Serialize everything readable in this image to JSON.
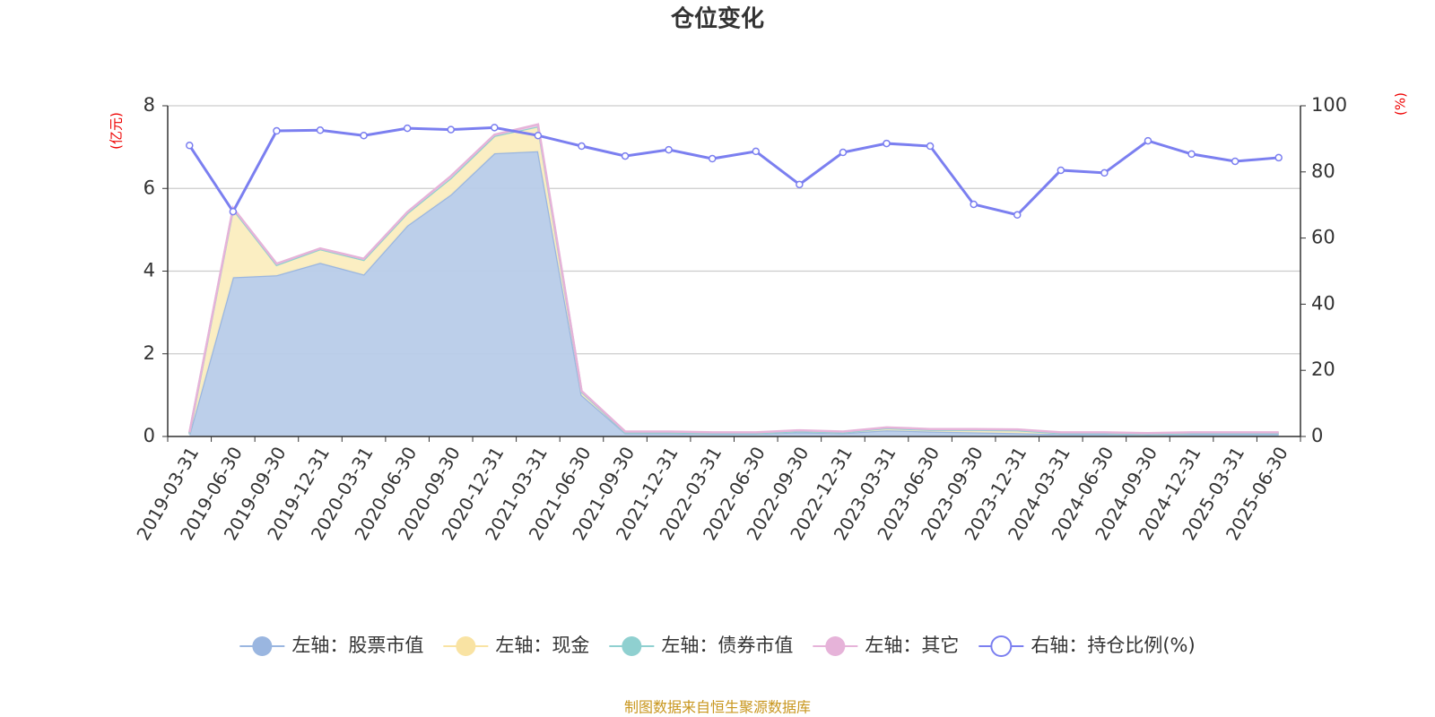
{
  "chart_data": {
    "type": "stacked-area-line",
    "title": "仓位变化",
    "y_label": "(亿元)",
    "y2_label": "(%)",
    "source": "制图数据来自恒生聚源数据库",
    "categories": [
      "2019-03-31",
      "2019-06-30",
      "2019-09-30",
      "2019-12-31",
      "2020-03-31",
      "2020-06-30",
      "2020-09-30",
      "2020-12-31",
      "2021-03-31",
      "2021-06-30",
      "2021-09-30",
      "2021-12-31",
      "2022-03-31",
      "2022-06-30",
      "2022-09-30",
      "2022-12-31",
      "2023-03-31",
      "2023-06-30",
      "2023-09-30",
      "2023-12-31",
      "2024-03-31",
      "2024-06-30",
      "2024-09-30",
      "2024-12-31",
      "2025-03-31",
      "2025-06-30"
    ],
    "ylim": [
      0,
      8
    ],
    "yticks": [
      0,
      2,
      4,
      6,
      8
    ],
    "y2lim": [
      0,
      100
    ],
    "y2ticks": [
      0,
      20,
      40,
      60,
      80,
      100
    ],
    "grid": true,
    "legend": "bottom",
    "series": [
      {
        "name": "左轴：股票市值",
        "color": "#9ab6e0",
        "fill": "#b8cce9",
        "kind": "area",
        "values": [
          0.05,
          3.85,
          3.9,
          4.2,
          3.92,
          5.1,
          5.85,
          6.85,
          6.9,
          1.0,
          0.08,
          0.08,
          0.07,
          0.07,
          0.1,
          0.08,
          0.15,
          0.12,
          0.1,
          0.08,
          0.06,
          0.06,
          0.05,
          0.06,
          0.06,
          0.06
        ]
      },
      {
        "name": "左轴：现金",
        "color": "#f9e3a3",
        "fill": "#fbedbf",
        "kind": "area",
        "values": [
          0.03,
          1.65,
          0.25,
          0.33,
          0.35,
          0.3,
          0.4,
          0.42,
          0.6,
          0.08,
          0.02,
          0.02,
          0.01,
          0.01,
          0.03,
          0.02,
          0.05,
          0.04,
          0.06,
          0.07,
          0.02,
          0.02,
          0.01,
          0.02,
          0.02,
          0.02
        ]
      },
      {
        "name": "左轴：债券市值",
        "color": "#8fd0d0",
        "fill": "#b6e1e1",
        "kind": "area",
        "values": [
          0,
          0,
          0,
          0,
          0,
          0,
          0,
          0,
          0,
          0,
          0,
          0,
          0,
          0,
          0,
          0,
          0,
          0,
          0,
          0,
          0,
          0,
          0,
          0,
          0,
          0
        ]
      },
      {
        "name": "左轴：其它",
        "color": "#e6b3d9",
        "fill": "#f0cfe8",
        "kind": "area",
        "values": [
          0.02,
          0.03,
          0.03,
          0.02,
          0.03,
          0.03,
          0.05,
          0.03,
          0.05,
          0.02,
          0.02,
          0.02,
          0.02,
          0.02,
          0.02,
          0.02,
          0.02,
          0.02,
          0.02,
          0.02,
          0.02,
          0.02,
          0.02,
          0.02,
          0.02,
          0.02
        ]
      },
      {
        "name": "右轴：持仓比例(%)",
        "color": "#7b7ff0",
        "kind": "line",
        "axis": "y2",
        "values": [
          88,
          68,
          92.4,
          92.6,
          91,
          93.2,
          92.8,
          93.4,
          91,
          87.8,
          84.8,
          86.7,
          84,
          86.2,
          76.2,
          85.9,
          88.6,
          87.8,
          70.2,
          67,
          80.5,
          79.7,
          89.4,
          85.4,
          83.2,
          84.3
        ]
      }
    ]
  }
}
